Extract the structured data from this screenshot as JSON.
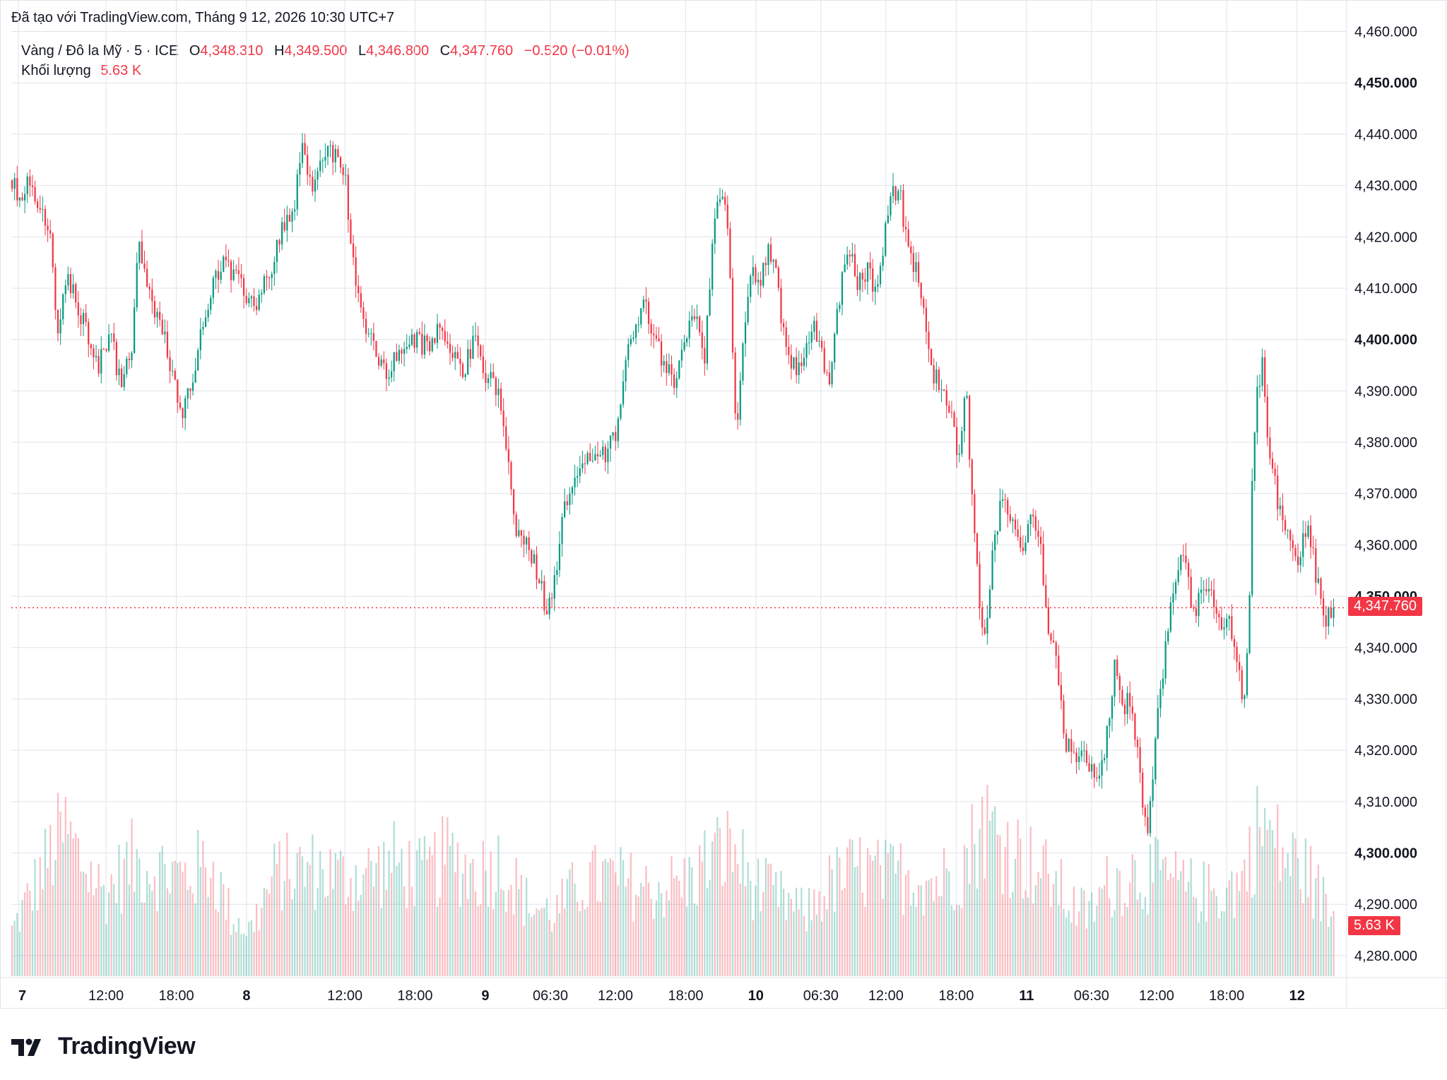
{
  "header": {
    "attribution": "Đã tạo với TradingView.com, Tháng 9 12, 2026 10:30 UTC+7"
  },
  "legend": {
    "symbol": "Vàng / Đô la Mỹ · 5 · ICE",
    "open_label": "O",
    "open": "4,348.310",
    "high_label": "H",
    "high": "4,349.500",
    "low_label": "L",
    "low": "4,346.800",
    "close_label": "C",
    "close": "4,347.760",
    "change": "−0.520 (−0.01%)",
    "volume_label": "Khối lượng",
    "volume": "5.63 K"
  },
  "colors": {
    "up": "#089981",
    "down": "#f23645",
    "grid": "#e0e3eb",
    "text": "#131722"
  },
  "logo": {
    "text": "TradingView",
    "icon": "tradingview-logo-icon"
  },
  "chart_data": {
    "type": "candlestick",
    "interval": "5",
    "y_axis": {
      "range": [
        4276,
        4462
      ],
      "ticks": [
        "4,460.000",
        "4,450.000",
        "4,440.000",
        "4,430.000",
        "4,420.000",
        "4,410.000",
        "4,400.000",
        "4,390.000",
        "4,380.000",
        "4,370.000",
        "4,360.000",
        "4,350.000",
        "4,340.000",
        "4,330.000",
        "4,320.000",
        "4,310.000",
        "4,300.000",
        "4,290.000",
        "4,280.000"
      ],
      "bold_ticks": [
        "4,450.000",
        "4,400.000",
        "4,350.000",
        "4,300.000"
      ]
    },
    "x_axis": {
      "ticks": [
        {
          "label": "7",
          "bold": true,
          "t": 0
        },
        {
          "label": "12:00",
          "bold": false,
          "t": 0.0662
        },
        {
          "label": "18:00",
          "bold": false,
          "t": 0.1193
        },
        {
          "label": "8",
          "bold": true,
          "t": 0.1723
        },
        {
          "label": "12:00",
          "bold": false,
          "t": 0.2466
        },
        {
          "label": "18:00",
          "bold": false,
          "t": 0.2996
        },
        {
          "label": "9",
          "bold": true,
          "t": 0.3527
        },
        {
          "label": "06:30",
          "bold": false,
          "t": 0.4018
        },
        {
          "label": "12:00",
          "bold": false,
          "t": 0.4509
        },
        {
          "label": "18:00",
          "bold": false,
          "t": 0.504
        },
        {
          "label": "10",
          "bold": true,
          "t": 0.557
        },
        {
          "label": "06:30",
          "bold": false,
          "t": 0.6061
        },
        {
          "label": "12:00",
          "bold": false,
          "t": 0.6552
        },
        {
          "label": "18:00",
          "bold": false,
          "t": 0.7083
        },
        {
          "label": "11",
          "bold": true,
          "t": 0.7614
        },
        {
          "label": "06:30",
          "bold": false,
          "t": 0.8105
        },
        {
          "label": "12:00",
          "bold": false,
          "t": 0.8596
        },
        {
          "label": "18:00",
          "bold": false,
          "t": 0.9126
        },
        {
          "label": "12",
          "bold": true,
          "t": 0.9657
        }
      ]
    },
    "anchors": [
      [
        0,
        4431
      ],
      [
        0.006,
        4428
      ],
      [
        0.014,
        4432
      ],
      [
        0.022,
        4424
      ],
      [
        0.03,
        4420
      ],
      [
        0.034,
        4398
      ],
      [
        0.04,
        4412
      ],
      [
        0.046,
        4409
      ],
      [
        0.056,
        4402
      ],
      [
        0.066,
        4395
      ],
      [
        0.074,
        4402
      ],
      [
        0.082,
        4391
      ],
      [
        0.09,
        4397
      ],
      [
        0.096,
        4419
      ],
      [
        0.104,
        4408
      ],
      [
        0.114,
        4402
      ],
      [
        0.122,
        4392
      ],
      [
        0.13,
        4386
      ],
      [
        0.138,
        4395
      ],
      [
        0.146,
        4404
      ],
      [
        0.152,
        4412
      ],
      [
        0.16,
        4415
      ],
      [
        0.168,
        4412
      ],
      [
        0.176,
        4409
      ],
      [
        0.184,
        4407
      ],
      [
        0.194,
        4412
      ],
      [
        0.204,
        4422
      ],
      [
        0.212,
        4424
      ],
      [
        0.22,
        4438
      ],
      [
        0.228,
        4428
      ],
      [
        0.236,
        4437
      ],
      [
        0.246,
        4436
      ],
      [
        0.252,
        4432
      ],
      [
        0.256,
        4420
      ],
      [
        0.262,
        4407
      ],
      [
        0.268,
        4402
      ],
      [
        0.276,
        4397
      ],
      [
        0.284,
        4393
      ],
      [
        0.296,
        4399
      ],
      [
        0.306,
        4400
      ],
      [
        0.316,
        4398
      ],
      [
        0.324,
        4403
      ],
      [
        0.334,
        4398
      ],
      [
        0.342,
        4394
      ],
      [
        0.35,
        4400
      ],
      [
        0.358,
        4393
      ],
      [
        0.364,
        4392
      ],
      [
        0.372,
        4385
      ],
      [
        0.378,
        4370
      ],
      [
        0.382,
        4362
      ],
      [
        0.39,
        4360
      ],
      [
        0.398,
        4354
      ],
      [
        0.404,
        4348
      ],
      [
        0.41,
        4352
      ],
      [
        0.418,
        4367
      ],
      [
        0.426,
        4374
      ],
      [
        0.434,
        4378
      ],
      [
        0.442,
        4376
      ],
      [
        0.45,
        4378
      ],
      [
        0.458,
        4383
      ],
      [
        0.464,
        4395
      ],
      [
        0.47,
        4402
      ],
      [
        0.478,
        4408
      ],
      [
        0.486,
        4400
      ],
      [
        0.494,
        4395
      ],
      [
        0.502,
        4391
      ],
      [
        0.51,
        4401
      ],
      [
        0.518,
        4405
      ],
      [
        0.524,
        4396
      ],
      [
        0.53,
        4418
      ],
      [
        0.536,
        4430
      ],
      [
        0.542,
        4422
      ],
      [
        0.548,
        4380
      ],
      [
        0.552,
        4398
      ],
      [
        0.558,
        4412
      ],
      [
        0.566,
        4412
      ],
      [
        0.572,
        4418
      ],
      [
        0.578,
        4412
      ],
      [
        0.582,
        4405
      ],
      [
        0.588,
        4397
      ],
      [
        0.594,
        4393
      ],
      [
        0.6,
        4397
      ],
      [
        0.606,
        4404
      ],
      [
        0.612,
        4398
      ],
      [
        0.618,
        4392
      ],
      [
        0.626,
        4408
      ],
      [
        0.632,
        4418
      ],
      [
        0.64,
        4411
      ],
      [
        0.648,
        4414
      ],
      [
        0.654,
        4408
      ],
      [
        0.66,
        4420
      ],
      [
        0.666,
        4430
      ],
      [
        0.672,
        4428
      ],
      [
        0.678,
        4418
      ],
      [
        0.684,
        4413
      ],
      [
        0.69,
        4404
      ],
      [
        0.696,
        4393
      ],
      [
        0.704,
        4391
      ],
      [
        0.71,
        4385
      ],
      [
        0.716,
        4378
      ],
      [
        0.722,
        4390
      ],
      [
        0.726,
        4370
      ],
      [
        0.73,
        4355
      ],
      [
        0.734,
        4342
      ],
      [
        0.738,
        4345
      ],
      [
        0.742,
        4358
      ],
      [
        0.748,
        4368
      ],
      [
        0.756,
        4366
      ],
      [
        0.764,
        4358
      ],
      [
        0.772,
        4368
      ],
      [
        0.778,
        4360
      ],
      [
        0.784,
        4345
      ],
      [
        0.79,
        4338
      ],
      [
        0.796,
        4322
      ],
      [
        0.804,
        4318
      ],
      [
        0.812,
        4318
      ],
      [
        0.82,
        4314
      ],
      [
        0.828,
        4322
      ],
      [
        0.834,
        4336
      ],
      [
        0.84,
        4328
      ],
      [
        0.846,
        4330
      ],
      [
        0.852,
        4320
      ],
      [
        0.856,
        4306
      ],
      [
        0.86,
        4304
      ],
      [
        0.866,
        4326
      ],
      [
        0.872,
        4338
      ],
      [
        0.88,
        4353
      ],
      [
        0.886,
        4358
      ],
      [
        0.894,
        4346
      ],
      [
        0.9,
        4350
      ],
      [
        0.908,
        4352
      ],
      [
        0.914,
        4343
      ],
      [
        0.92,
        4348
      ],
      [
        0.926,
        4338
      ],
      [
        0.932,
        4330
      ],
      [
        0.936,
        4346
      ],
      [
        0.938,
        4370
      ],
      [
        0.942,
        4390
      ],
      [
        0.946,
        4395
      ],
      [
        0.95,
        4382
      ],
      [
        0.958,
        4368
      ],
      [
        0.966,
        4363
      ],
      [
        0.972,
        4355
      ],
      [
        0.98,
        4365
      ],
      [
        0.988,
        4352
      ],
      [
        0.994,
        4345
      ],
      [
        1.0,
        4347.76
      ]
    ],
    "volume_profile": [
      [
        0,
        0.22
      ],
      [
        0.03,
        0.6
      ],
      [
        0.04,
        0.7
      ],
      [
        0.05,
        0.58
      ],
      [
        0.07,
        0.4
      ],
      [
        0.09,
        0.55
      ],
      [
        0.11,
        0.52
      ],
      [
        0.13,
        0.48
      ],
      [
        0.15,
        0.55
      ],
      [
        0.165,
        0.3
      ],
      [
        0.18,
        0.22
      ],
      [
        0.2,
        0.5
      ],
      [
        0.23,
        0.52
      ],
      [
        0.25,
        0.48
      ],
      [
        0.27,
        0.5
      ],
      [
        0.29,
        0.55
      ],
      [
        0.31,
        0.48
      ],
      [
        0.33,
        0.58
      ],
      [
        0.35,
        0.5
      ],
      [
        0.37,
        0.55
      ],
      [
        0.39,
        0.35
      ],
      [
        0.41,
        0.3
      ],
      [
        0.43,
        0.45
      ],
      [
        0.45,
        0.48
      ],
      [
        0.48,
        0.42
      ],
      [
        0.51,
        0.45
      ],
      [
        0.53,
        0.58
      ],
      [
        0.545,
        0.62
      ],
      [
        0.56,
        0.45
      ],
      [
        0.58,
        0.38
      ],
      [
        0.6,
        0.3
      ],
      [
        0.62,
        0.45
      ],
      [
        0.64,
        0.52
      ],
      [
        0.66,
        0.48
      ],
      [
        0.68,
        0.5
      ],
      [
        0.7,
        0.45
      ],
      [
        0.72,
        0.55
      ],
      [
        0.735,
        0.75
      ],
      [
        0.75,
        0.65
      ],
      [
        0.77,
        0.55
      ],
      [
        0.79,
        0.45
      ],
      [
        0.8,
        0.35
      ],
      [
        0.815,
        0.3
      ],
      [
        0.83,
        0.45
      ],
      [
        0.85,
        0.5
      ],
      [
        0.87,
        0.48
      ],
      [
        0.89,
        0.42
      ],
      [
        0.91,
        0.4
      ],
      [
        0.93,
        0.45
      ],
      [
        0.945,
        0.75
      ],
      [
        0.96,
        0.6
      ],
      [
        0.98,
        0.5
      ],
      [
        1.0,
        0.28
      ]
    ],
    "candle_count": 520,
    "last_price": "4,347.760",
    "last_volume": "5.63 K",
    "volume_max_k": 12
  }
}
